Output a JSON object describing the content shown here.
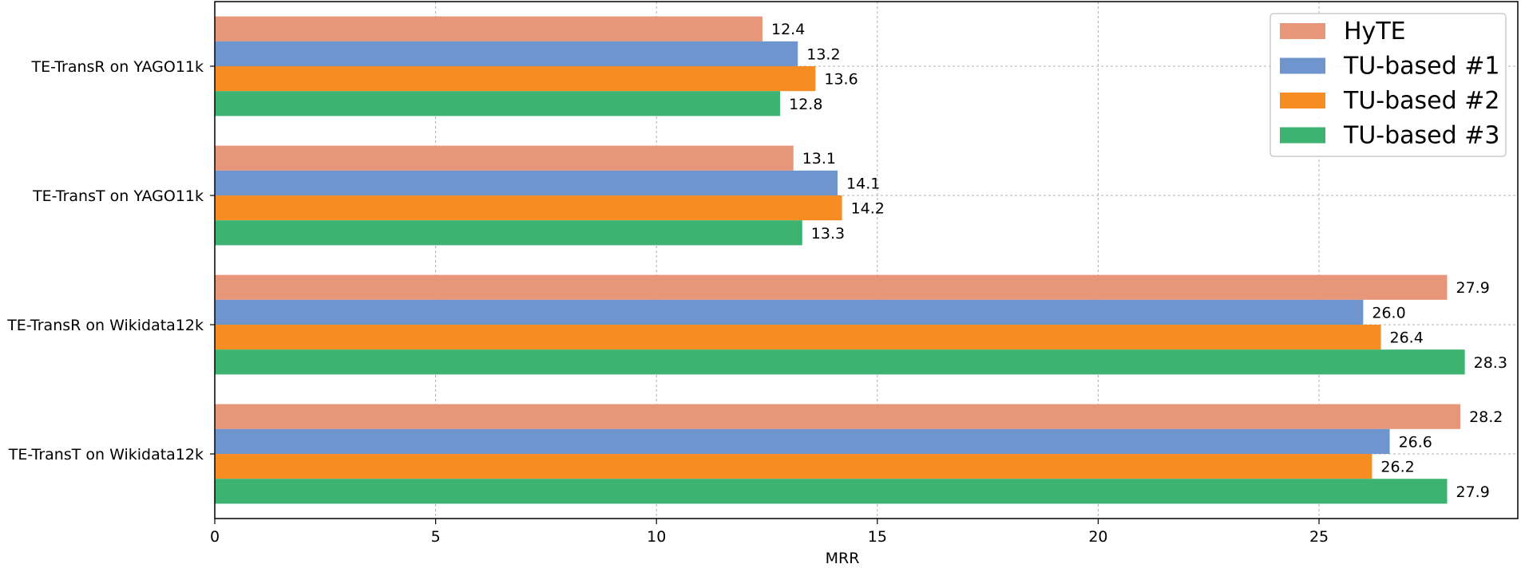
{
  "chart_data": {
    "type": "bar",
    "orientation": "horizontal",
    "categories": [
      "TE-TransR on YAGO11k",
      "TE-TransT on YAGO11k",
      "TE-TransR on Wikidata12k",
      "TE-TransT on Wikidata12k"
    ],
    "series": [
      {
        "name": "HyTE",
        "color": "#E8967A",
        "values": [
          12.4,
          13.1,
          27.9,
          28.2
        ],
        "labels": [
          "12.4",
          "13.1",
          "27.9",
          "28.2"
        ]
      },
      {
        "name": "TU-based #1",
        "color": "#6E95CD",
        "values": [
          13.2,
          14.1,
          26.0,
          26.6
        ],
        "labels": [
          "13.2",
          "14.1",
          "26.0",
          "26.6"
        ]
      },
      {
        "name": "TU-based #2",
        "color": "#F58D22",
        "values": [
          13.6,
          14.2,
          26.4,
          26.2
        ],
        "labels": [
          "13.6",
          "14.2",
          "26.4",
          "26.2"
        ]
      },
      {
        "name": "TU-based #3",
        "color": "#3CB371",
        "values": [
          12.8,
          13.3,
          28.3,
          27.9
        ],
        "labels": [
          "12.8",
          "13.3",
          "28.3",
          "27.9"
        ]
      }
    ],
    "xlabel": "MRR",
    "ylabel": "",
    "xlim": [
      0,
      29.5
    ],
    "xticks": [
      "0",
      "5",
      "10",
      "15",
      "20",
      "25"
    ],
    "grid": true,
    "legend_position": "top-right"
  }
}
